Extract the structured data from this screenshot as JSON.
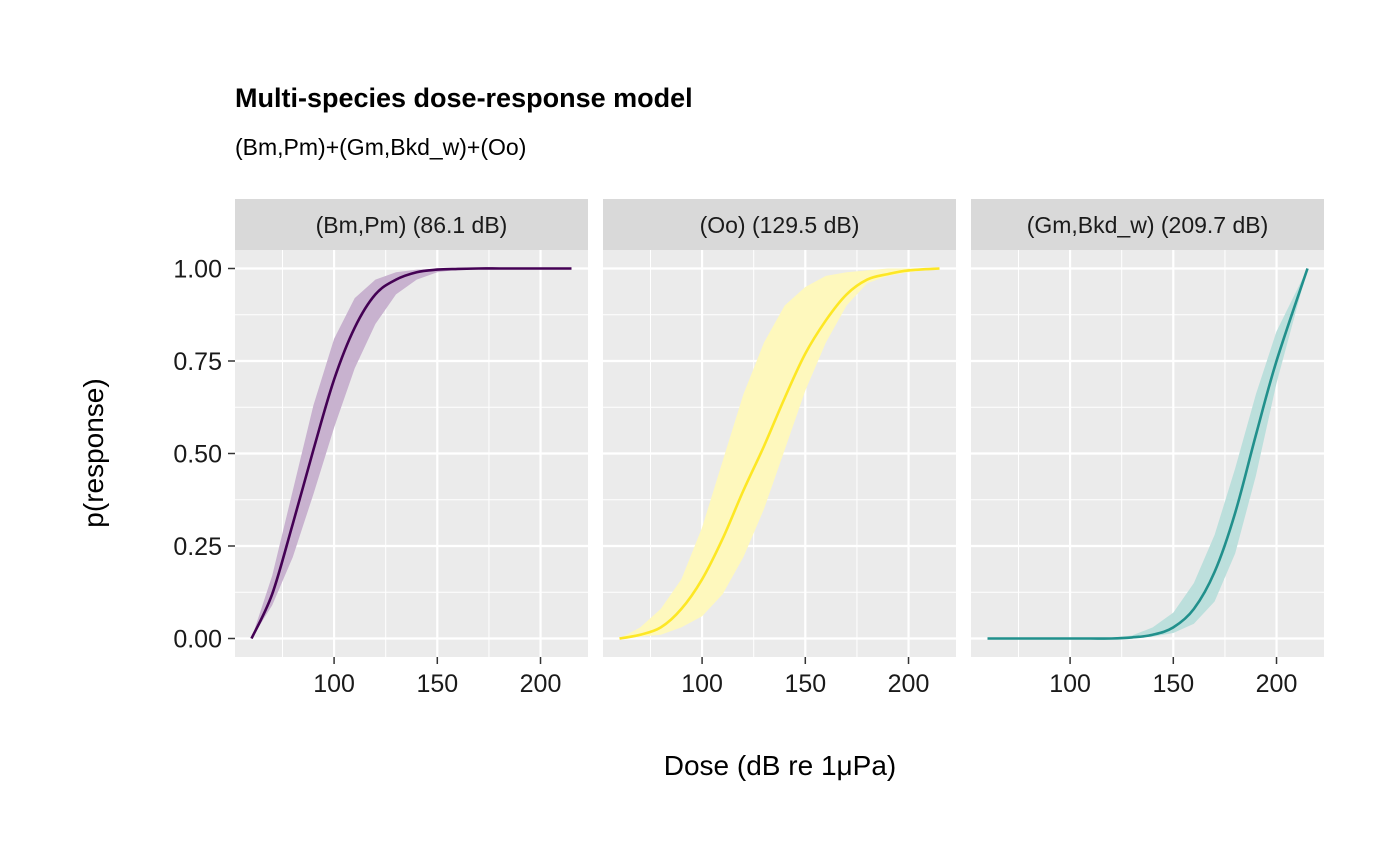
{
  "chart_data": {
    "type": "line",
    "title": "Multi-species dose-response model",
    "subtitle": "(Bm,Pm)+(Gm,Bkd_w)+(Oo)",
    "xlabel": "Dose (dB re 1μPa)",
    "ylabel": "p(response)",
    "xlim": [
      52,
      223
    ],
    "ylim": [
      -0.05,
      1.05
    ],
    "x_ticks": [
      100,
      150,
      200
    ],
    "x_tick_labels": [
      "100",
      "150",
      "200"
    ],
    "y_ticks": [
      0,
      0.25,
      0.5,
      0.75,
      1
    ],
    "y_tick_labels": [
      "0.00",
      "0.25",
      "0.50",
      "0.75",
      "1.00"
    ],
    "grid": true,
    "legend": "none",
    "x_range": [
      60,
      215
    ],
    "panels": [
      {
        "strip": "(Bm,Pm) (86.1 dB)",
        "color": "#440154",
        "fill": "#c8b2cf",
        "x": [
          60,
          70,
          80,
          90,
          100,
          110,
          120,
          130,
          140,
          150,
          160,
          170,
          180,
          190,
          200,
          215
        ],
        "y": [
          0.0,
          0.12,
          0.31,
          0.51,
          0.7,
          0.84,
          0.93,
          0.97,
          0.99,
          0.997,
          0.999,
          1.0,
          1.0,
          1.0,
          1.0,
          1.0
        ],
        "lower": [
          0.0,
          0.09,
          0.22,
          0.39,
          0.57,
          0.73,
          0.85,
          0.93,
          0.97,
          0.99,
          0.997,
          0.999,
          1.0,
          1.0,
          1.0,
          1.0
        ],
        "upper": [
          0.0,
          0.17,
          0.4,
          0.63,
          0.81,
          0.92,
          0.97,
          0.99,
          0.997,
          0.999,
          1.0,
          1.0,
          1.0,
          1.0,
          1.0,
          1.0
        ]
      },
      {
        "strip": "(Oo) (129.5 dB)",
        "color": "#fde725",
        "fill": "#fef8bd",
        "x": [
          60,
          70,
          80,
          90,
          100,
          110,
          120,
          130,
          140,
          150,
          160,
          170,
          180,
          190,
          200,
          215
        ],
        "y": [
          0.0,
          0.01,
          0.03,
          0.08,
          0.16,
          0.27,
          0.4,
          0.52,
          0.65,
          0.77,
          0.86,
          0.93,
          0.97,
          0.985,
          0.995,
          1.0
        ],
        "lower": [
          0.0,
          0.005,
          0.01,
          0.03,
          0.06,
          0.12,
          0.22,
          0.35,
          0.51,
          0.67,
          0.8,
          0.9,
          0.96,
          0.98,
          0.99,
          1.0
        ],
        "upper": [
          0.0,
          0.03,
          0.08,
          0.16,
          0.3,
          0.48,
          0.66,
          0.8,
          0.9,
          0.95,
          0.98,
          0.99,
          0.995,
          1.0,
          1.0,
          1.0
        ]
      },
      {
        "strip": "(Gm,Bkd_w) (209.7 dB)",
        "color": "#21908c",
        "fill": "#bcdfdc",
        "x": [
          60,
          70,
          80,
          90,
          100,
          110,
          120,
          130,
          140,
          150,
          160,
          170,
          180,
          190,
          200,
          215
        ],
        "y": [
          0.0,
          0.0,
          0.0,
          0.0,
          0.0,
          0.0,
          0.0,
          0.003,
          0.01,
          0.03,
          0.08,
          0.18,
          0.34,
          0.55,
          0.75,
          1.0
        ],
        "lower": [
          0.0,
          0.0,
          0.0,
          0.0,
          0.0,
          0.0,
          0.0,
          0.001,
          0.005,
          0.015,
          0.04,
          0.1,
          0.23,
          0.44,
          0.69,
          1.0
        ],
        "upper": [
          0.0,
          0.0,
          0.0,
          0.0,
          0.0,
          0.0,
          0.002,
          0.008,
          0.03,
          0.07,
          0.15,
          0.28,
          0.46,
          0.66,
          0.83,
          1.0
        ]
      }
    ]
  }
}
